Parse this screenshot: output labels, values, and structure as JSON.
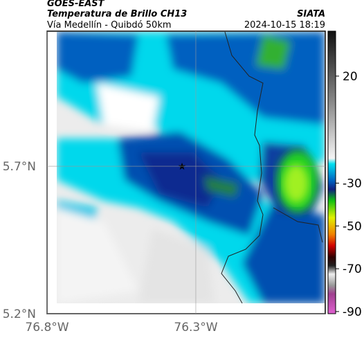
{
  "header": {
    "source": "GOES-EAST",
    "product": "Temperatura de Brillo CH13",
    "brand": "SIATA",
    "route": "Vía Medellín - Quibdó 50km",
    "timestamp": "2024-10-15 18:19"
  },
  "map": {
    "xlim": [
      -76.8,
      -75.865
    ],
    "ylim": [
      5.2,
      6.158
    ],
    "xticks": [
      {
        "value": -76.8,
        "label": "76.8°W"
      },
      {
        "value": -76.3,
        "label": "76.3°W"
      }
    ],
    "yticks": [
      {
        "value": 5.7,
        "label": "5.7°N"
      },
      {
        "value": 5.2,
        "label": "5.2°N"
      }
    ],
    "colorbar": {
      "clim": [
        41,
        -91
      ],
      "ticks": [
        20,
        -30,
        -50,
        -70,
        -90
      ]
    }
  }
}
